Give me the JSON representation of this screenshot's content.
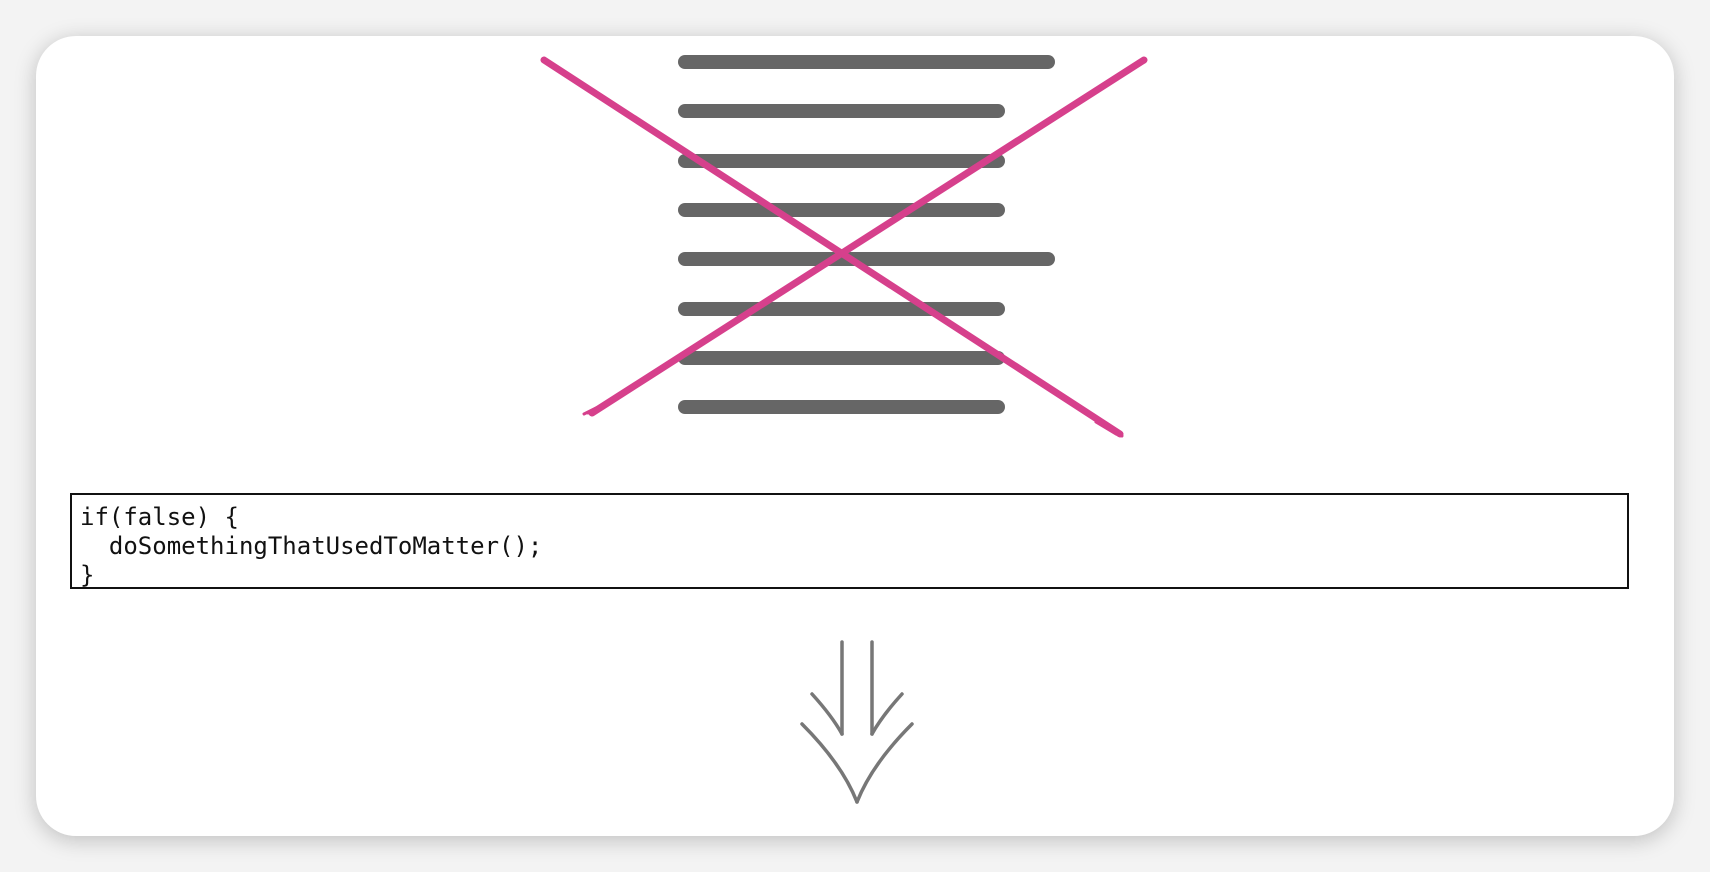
{
  "code": {
    "lines": [
      "if(false) {",
      "  doSomethingThatUsedToMatter();",
      "}"
    ]
  },
  "illustration": {
    "text_line_count": 8,
    "text_line_color": "#666666",
    "cross_color": "#d6408c",
    "arrow_color": "#777777",
    "card_background": "#ffffff",
    "page_background": "#f3f3f3"
  }
}
